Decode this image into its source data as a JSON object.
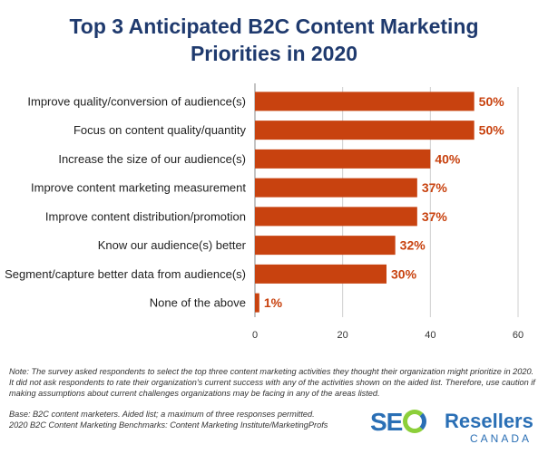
{
  "title_line1": "Top 3 Anticipated B2C Content Marketing",
  "title_line2": "Priorities in 2020",
  "chart_data": {
    "type": "bar",
    "orientation": "horizontal",
    "title": "Top 3 Anticipated B2C Content Marketing Priorities in 2020",
    "categories": [
      "Improve quality/conversion of audience(s)",
      "Focus on content quality/quantity",
      "Increase the size of our audience(s)",
      "Improve content marketing measurement",
      "Improve content distribution/promotion",
      "Know our audience(s) better",
      "Segment/capture better data from audience(s)",
      "None of the above"
    ],
    "values": [
      50,
      50,
      40,
      37,
      37,
      32,
      30,
      1
    ],
    "value_labels": [
      "50%",
      "50%",
      "40%",
      "37%",
      "37%",
      "32%",
      "30%",
      "1%"
    ],
    "xlim": [
      0,
      60
    ],
    "xticks": [
      "0",
      "20",
      "40",
      "60"
    ],
    "grid": true,
    "bar_color": "#c8420f"
  },
  "note": "Note: The survey asked respondents to select the top three content marketing activities they thought their organization might prioritize in 2020. It did not ask respondents to rate their organization's current success with any of the activities shown on the aided list. Therefore, use caution if making assumptions about current challenges organizations may be facing in any of the areas listed.",
  "base_line1": "Base: B2C content marketers. Aided list; a maximum of three responses permitted.",
  "base_line2": "2020 B2C Content Marketing Benchmarks: Content Marketing Institute/MarketingProfs",
  "logo": {
    "seo": "SE",
    "resellers": "Resellers",
    "canada": "CANADA"
  }
}
